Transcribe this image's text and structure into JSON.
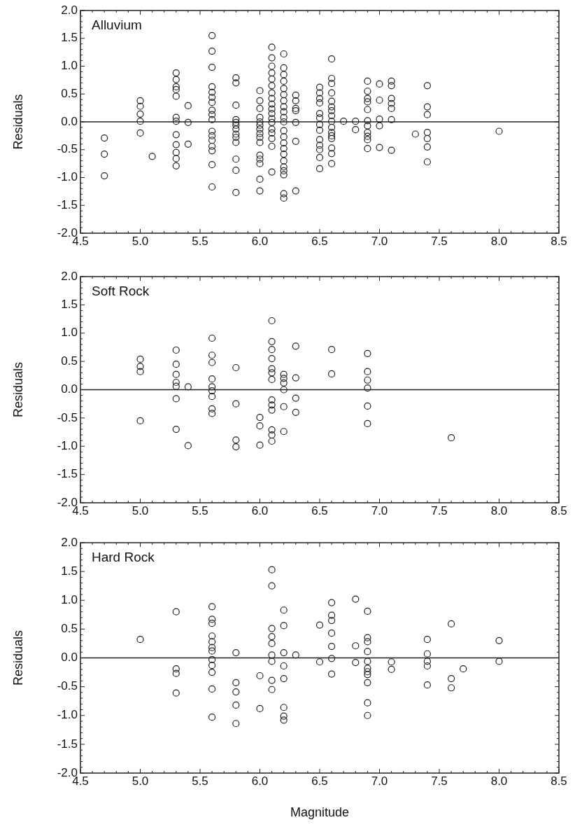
{
  "chart_data": [
    {
      "type": "scatter",
      "title": "Alluvium",
      "ylabel": "Residuals",
      "xlim": [
        4.5,
        8.5
      ],
      "xticks": [
        {
          "value": 4.5,
          "label": "4.5"
        },
        {
          "value": 5,
          "label": "5.0"
        },
        {
          "value": 5.5,
          "label": "5.5"
        },
        {
          "value": 6,
          "label": "6.0"
        },
        {
          "value": 6.5,
          "label": "6.5"
        },
        {
          "value": 7,
          "label": "7.0"
        },
        {
          "value": 7.5,
          "label": "7.5"
        },
        {
          "value": 8,
          "label": "8.0"
        },
        {
          "value": 8.5,
          "label": "8.5"
        }
      ],
      "ylim": [
        -2,
        2
      ],
      "yticks": [
        {
          "value": -2,
          "label": "-2.0"
        },
        {
          "value": -1.5,
          "label": "-1.5"
        },
        {
          "value": -1,
          "label": "-1.0"
        },
        {
          "value": -0.5,
          "label": "-0.5"
        },
        {
          "value": 0,
          "label": "0.0"
        },
        {
          "value": 0.5,
          "label": "0.5"
        },
        {
          "value": 1,
          "label": "1.0"
        },
        {
          "value": 1.5,
          "label": "1.5"
        },
        {
          "value": 2,
          "label": "2.0"
        }
      ],
      "marker": "circle",
      "grid": false,
      "legend": false,
      "ref_lines": [
        {
          "axis": "y",
          "value": 0,
          "color": "#222222"
        }
      ],
      "series": [
        {
          "color": "#222222",
          "x": [
            4.7,
            4.7,
            4.7,
            5.0,
            5.0,
            5.0,
            5.0,
            5.0,
            5.1,
            5.3,
            5.3,
            5.3,
            5.3,
            5.3,
            5.3,
            5.3,
            5.3,
            5.3,
            5.3,
            5.3,
            5.3,
            5.4,
            5.4,
            5.4,
            5.6,
            5.6,
            5.6,
            5.6,
            5.6,
            5.6,
            5.6,
            5.6,
            5.6,
            5.6,
            5.6,
            5.6,
            5.6,
            5.6,
            5.6,
            5.6,
            5.6,
            5.8,
            5.8,
            5.8,
            5.8,
            5.8,
            5.8,
            5.8,
            5.8,
            5.8,
            5.8,
            5.8,
            5.8,
            5.8,
            6.0,
            6.0,
            6.0,
            6.0,
            6.0,
            6.0,
            6.0,
            6.0,
            6.0,
            6.0,
            6.0,
            6.0,
            6.0,
            6.0,
            6.0,
            6.1,
            6.1,
            6.1,
            6.1,
            6.1,
            6.1,
            6.1,
            6.1,
            6.1,
            6.1,
            6.1,
            6.1,
            6.1,
            6.1,
            6.1,
            6.1,
            6.1,
            6.1,
            6.2,
            6.2,
            6.2,
            6.2,
            6.2,
            6.2,
            6.2,
            6.2,
            6.2,
            6.2,
            6.2,
            6.2,
            6.2,
            6.2,
            6.2,
            6.2,
            6.2,
            6.2,
            6.2,
            6.2,
            6.2,
            6.2,
            6.3,
            6.3,
            6.3,
            6.3,
            6.3,
            6.3,
            6.3,
            6.5,
            6.5,
            6.5,
            6.5,
            6.5,
            6.5,
            6.5,
            6.5,
            6.5,
            6.5,
            6.5,
            6.5,
            6.5,
            6.6,
            6.6,
            6.6,
            6.6,
            6.6,
            6.6,
            6.6,
            6.6,
            6.6,
            6.6,
            6.6,
            6.6,
            6.6,
            6.6,
            6.6,
            6.6,
            6.7,
            6.8,
            6.8,
            6.9,
            6.9,
            6.9,
            6.9,
            6.9,
            6.9,
            6.9,
            6.9,
            6.9,
            6.9,
            6.9,
            7.0,
            7.0,
            7.0,
            7.0,
            7.0,
            7.1,
            7.1,
            7.1,
            7.1,
            7.1,
            7.1,
            7.1,
            7.3,
            7.4,
            7.4,
            7.4,
            7.4,
            7.4,
            7.4,
            7.4,
            8.0
          ],
          "values": [
            -0.29,
            -0.58,
            -0.97,
            0.38,
            0.28,
            0.14,
            0.01,
            -0.2,
            -0.62,
            0.88,
            0.76,
            0.63,
            0.58,
            0.46,
            0.08,
            0.01,
            -0.23,
            -0.41,
            -0.55,
            -0.66,
            -0.79,
            0.29,
            -0.01,
            -0.4,
            1.55,
            1.27,
            0.98,
            0.63,
            0.53,
            0.44,
            0.35,
            0.21,
            0.13,
            0.04,
            -0.17,
            -0.25,
            -0.33,
            -0.44,
            -0.52,
            -0.77,
            -1.17,
            0.79,
            0.7,
            0.3,
            0.04,
            -0.01,
            -0.06,
            -0.13,
            -0.22,
            -0.28,
            -0.37,
            -0.67,
            -0.87,
            -1.27,
            0.56,
            0.38,
            0.24,
            0.08,
            0,
            -0.06,
            -0.13,
            -0.21,
            -0.28,
            -0.37,
            -0.6,
            -0.67,
            -0.75,
            -1.03,
            -1.24,
            1.34,
            1.15,
            1.0,
            0.88,
            0.77,
            0.65,
            0.52,
            0.42,
            0.32,
            0.23,
            0.15,
            0.06,
            -0.01,
            -0.13,
            -0.2,
            -0.3,
            -0.44,
            -0.9,
            1.22,
            0.97,
            0.85,
            0.73,
            0.6,
            0.49,
            0.38,
            0.27,
            0.18,
            0.08,
            0,
            -0.16,
            -0.27,
            -0.38,
            -0.48,
            -0.58,
            -0.7,
            -0.81,
            -0.88,
            -0.95,
            -1.29,
            -1.37,
            0.48,
            0.38,
            0.24,
            0.2,
            -0.01,
            -0.35,
            -1.24,
            0.62,
            0.52,
            0.42,
            0.34,
            0.15,
            0.07,
            -0.05,
            -0.15,
            -0.32,
            -0.42,
            -0.5,
            -0.64,
            -0.84,
            1.13,
            0.78,
            0.69,
            0.52,
            0.37,
            0.27,
            0.2,
            0.11,
            0.01,
            -0.1,
            -0.19,
            -0.25,
            -0.3,
            -0.47,
            -0.57,
            -0.75,
            0.01,
            0.01,
            -0.14,
            0.73,
            0.55,
            0.42,
            0.36,
            0.22,
            0.02,
            -0.07,
            -0.19,
            -0.26,
            -0.32,
            -0.48,
            0.68,
            0.39,
            0.05,
            -0.07,
            -0.46,
            0.73,
            0.65,
            0.42,
            0.33,
            0.24,
            0.04,
            -0.51,
            -0.22,
            0.65,
            0.27,
            0.13,
            -0.19,
            -0.3,
            -0.45,
            -0.72,
            -0.17
          ]
        }
      ]
    },
    {
      "type": "scatter",
      "title": "Soft Rock",
      "ylabel": "Residuals",
      "xlim": [
        4.5,
        8.5
      ],
      "xticks": [
        {
          "value": 4.5,
          "label": "4.5"
        },
        {
          "value": 5,
          "label": "5.0"
        },
        {
          "value": 5.5,
          "label": "5.5"
        },
        {
          "value": 6,
          "label": "6.0"
        },
        {
          "value": 6.5,
          "label": "6.5"
        },
        {
          "value": 7,
          "label": "7.0"
        },
        {
          "value": 7.5,
          "label": "7.5"
        },
        {
          "value": 8,
          "label": "8.0"
        },
        {
          "value": 8.5,
          "label": "8.5"
        }
      ],
      "ylim": [
        -2,
        2
      ],
      "yticks": [
        {
          "value": -2,
          "label": "-2.0"
        },
        {
          "value": -1.5,
          "label": "-1.5"
        },
        {
          "value": -1,
          "label": "-1.0"
        },
        {
          "value": -0.5,
          "label": "-0.5"
        },
        {
          "value": 0,
          "label": "0.0"
        },
        {
          "value": 0.5,
          "label": "0.5"
        },
        {
          "value": 1,
          "label": "1.0"
        },
        {
          "value": 1.5,
          "label": "1.5"
        },
        {
          "value": 2,
          "label": "2.0"
        }
      ],
      "marker": "circle",
      "grid": false,
      "legend": false,
      "ref_lines": [
        {
          "axis": "y",
          "value": 0,
          "color": "#222222"
        }
      ],
      "series": [
        {
          "color": "#222222",
          "x": [
            5.0,
            5.0,
            5.0,
            5.0,
            5.3,
            5.3,
            5.3,
            5.3,
            5.3,
            5.3,
            5.3,
            5.4,
            5.4,
            5.6,
            5.6,
            5.6,
            5.6,
            5.6,
            5.6,
            5.6,
            5.6,
            5.6,
            5.8,
            5.8,
            5.8,
            5.8,
            6.0,
            6.0,
            6.0,
            6.1,
            6.1,
            6.1,
            6.1,
            6.1,
            6.1,
            6.1,
            6.1,
            6.1,
            6.1,
            6.1,
            6.1,
            6.1,
            6.2,
            6.2,
            6.2,
            6.2,
            6.2,
            6.2,
            6.3,
            6.3,
            6.3,
            6.3,
            6.6,
            6.6,
            6.9,
            6.9,
            6.9,
            6.9,
            6.9,
            6.9,
            7.6
          ],
          "values": [
            0.54,
            0.41,
            0.32,
            -0.55,
            0.7,
            0.45,
            0.27,
            0.13,
            0.06,
            -0.16,
            -0.7,
            0.05,
            -0.99,
            0.91,
            0.61,
            0.48,
            0.19,
            0.05,
            -0.02,
            -0.12,
            -0.34,
            -0.42,
            0.39,
            -0.25,
            -0.89,
            -1.01,
            -0.49,
            -0.64,
            -0.98,
            1.22,
            0.85,
            0.71,
            0.55,
            0.37,
            0.3,
            0.18,
            -0.18,
            -0.27,
            -0.36,
            -0.71,
            -0.8,
            -0.91,
            0.27,
            0.2,
            0.12,
            0,
            -0.3,
            -0.74,
            0.77,
            0.21,
            -0.15,
            -0.4,
            0.71,
            0.28,
            0.64,
            0.32,
            0.17,
            0.03,
            -0.29,
            -0.6,
            -0.85
          ]
        }
      ]
    },
    {
      "type": "scatter",
      "title": "Hard Rock",
      "ylabel": "Residuals",
      "xlabel": "Magnitude",
      "xlim": [
        4.5,
        8.5
      ],
      "xticks": [
        {
          "value": 4.5,
          "label": "4.5"
        },
        {
          "value": 5,
          "label": "5.0"
        },
        {
          "value": 5.5,
          "label": "5.5"
        },
        {
          "value": 6,
          "label": "6.0"
        },
        {
          "value": 6.5,
          "label": "6.5"
        },
        {
          "value": 7,
          "label": "7.0"
        },
        {
          "value": 7.5,
          "label": "7.5"
        },
        {
          "value": 8,
          "label": "8.0"
        },
        {
          "value": 8.5,
          "label": "8.5"
        }
      ],
      "ylim": [
        -2,
        2
      ],
      "yticks": [
        {
          "value": -2,
          "label": "-2.0"
        },
        {
          "value": -1.5,
          "label": "-1.5"
        },
        {
          "value": -1,
          "label": "-1.0"
        },
        {
          "value": -0.5,
          "label": "-0.5"
        },
        {
          "value": 0,
          "label": "0.0"
        },
        {
          "value": 0.5,
          "label": "0.5"
        },
        {
          "value": 1,
          "label": "1.0"
        },
        {
          "value": 1.5,
          "label": "1.5"
        },
        {
          "value": 2,
          "label": "2.0"
        }
      ],
      "marker": "circle",
      "grid": false,
      "legend": false,
      "ref_lines": [
        {
          "axis": "y",
          "value": 0,
          "color": "#222222"
        }
      ],
      "series": [
        {
          "color": "#222222",
          "x": [
            5.0,
            5.3,
            5.3,
            5.3,
            5.3,
            5.6,
            5.6,
            5.6,
            5.6,
            5.6,
            5.6,
            5.6,
            5.6,
            5.6,
            5.6,
            5.6,
            5.6,
            5.8,
            5.8,
            5.8,
            5.8,
            5.8,
            6.0,
            6.0,
            6.1,
            6.1,
            6.1,
            6.1,
            6.1,
            6.1,
            6.1,
            6.1,
            6.1,
            6.2,
            6.2,
            6.2,
            6.2,
            6.2,
            6.2,
            6.2,
            6.2,
            6.3,
            6.5,
            6.5,
            6.6,
            6.6,
            6.6,
            6.6,
            6.6,
            6.6,
            6.6,
            6.8,
            6.8,
            6.8,
            6.9,
            6.9,
            6.9,
            6.9,
            6.9,
            6.9,
            6.9,
            6.9,
            6.9,
            6.9,
            6.9,
            7.1,
            7.1,
            7.4,
            7.4,
            7.4,
            7.4,
            7.4,
            7.6,
            7.6,
            7.6,
            7.7,
            8.0,
            8.0
          ],
          "values": [
            0.32,
            0.8,
            -0.19,
            -0.27,
            -0.61,
            0.89,
            0.67,
            0.6,
            0.38,
            0.28,
            0.18,
            0.12,
            -0.03,
            -0.13,
            -0.25,
            -0.54,
            -1.03,
            0.09,
            -0.43,
            -0.59,
            -0.82,
            -1.14,
            -0.31,
            -0.88,
            1.53,
            1.25,
            0.51,
            0.37,
            0.25,
            0.05,
            -0.06,
            -0.39,
            -0.55,
            0.83,
            0.56,
            0.09,
            -0.14,
            -0.36,
            -0.86,
            -1.01,
            -1.08,
            0.05,
            0.57,
            -0.07,
            0.96,
            0.74,
            0.65,
            0.43,
            0.2,
            -0.01,
            -0.28,
            1.02,
            0.21,
            -0.08,
            0.81,
            0.35,
            0.28,
            0.11,
            -0.06,
            -0.18,
            -0.24,
            -0.29,
            -0.43,
            -0.78,
            -1.0,
            -0.07,
            -0.2,
            0.32,
            0.07,
            -0.06,
            -0.14,
            -0.47,
            0.59,
            -0.36,
            -0.52,
            -0.19,
            0.3,
            -0.06
          ]
        }
      ]
    }
  ]
}
